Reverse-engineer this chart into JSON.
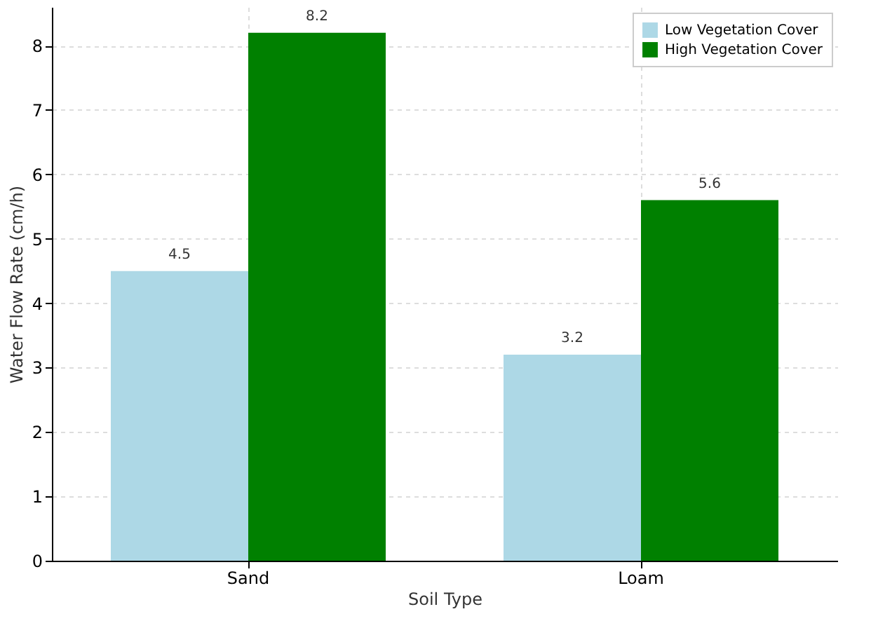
{
  "chart_data": {
    "type": "bar",
    "xlabel": "Soil Type",
    "ylabel": "Water Flow Rate (cm/h)",
    "categories": [
      "Sand",
      "Loam"
    ],
    "series": [
      {
        "name": "Low Vegetation Cover",
        "color": "#add8e6",
        "values": [
          4.5,
          3.2
        ]
      },
      {
        "name": "High Vegetation Cover",
        "color": "#008000",
        "values": [
          8.2,
          5.6
        ]
      }
    ],
    "ylim": [
      0,
      8.6
    ],
    "yticks": [
      0,
      1,
      2,
      3,
      4,
      5,
      6,
      7,
      8
    ],
    "grid": true,
    "legend": "top right",
    "data_labels": true
  }
}
